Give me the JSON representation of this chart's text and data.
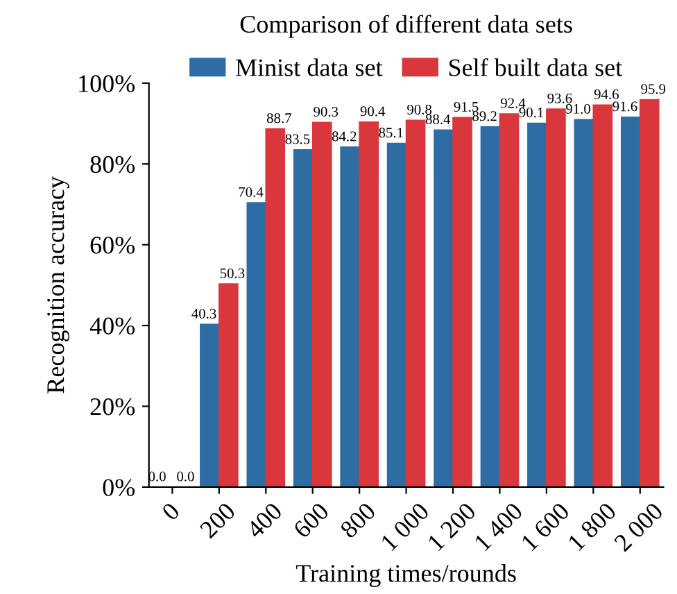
{
  "chart_data": {
    "type": "bar",
    "title": "Comparison of different data sets",
    "xlabel": "Training times/rounds",
    "ylabel": "Recognition accuracy",
    "categories": [
      "0",
      "200",
      "400",
      "600",
      "800",
      "1 000",
      "1 200",
      "1 400",
      "1 600",
      "1 800",
      "2 000"
    ],
    "series": [
      {
        "name": "Minist data set",
        "color": "#2e6ca4",
        "values": [
          0.0,
          40.3,
          70.4,
          83.5,
          84.2,
          85.1,
          88.4,
          89.2,
          90.1,
          91.0,
          91.6
        ],
        "value_labels": [
          "0.0",
          "40.3",
          "70.4",
          "83.5",
          "84.2",
          "85.1",
          "88.4",
          "89.2",
          "90.1",
          "91.0",
          "91.6"
        ]
      },
      {
        "name": "Self built data set",
        "color": "#d9373b",
        "values": [
          0.0,
          50.3,
          88.7,
          90.3,
          90.4,
          90.8,
          91.5,
          92.4,
          93.6,
          94.6,
          95.9
        ],
        "value_labels": [
          "0.0",
          "50.3",
          "88.7",
          "90.3",
          "90.4",
          "90.8",
          "91.5",
          "92.4",
          "93.6",
          "94.6",
          "95.9"
        ]
      }
    ],
    "ylim": [
      0,
      100
    ],
    "yticks": [
      {
        "value": 0,
        "label": "0%"
      },
      {
        "value": 20,
        "label": "20%"
      },
      {
        "value": 40,
        "label": "40%"
      },
      {
        "value": 60,
        "label": "60%"
      },
      {
        "value": 80,
        "label": "80%"
      },
      {
        "value": 100,
        "label": "100%"
      }
    ],
    "legend": "top",
    "grid": false
  }
}
